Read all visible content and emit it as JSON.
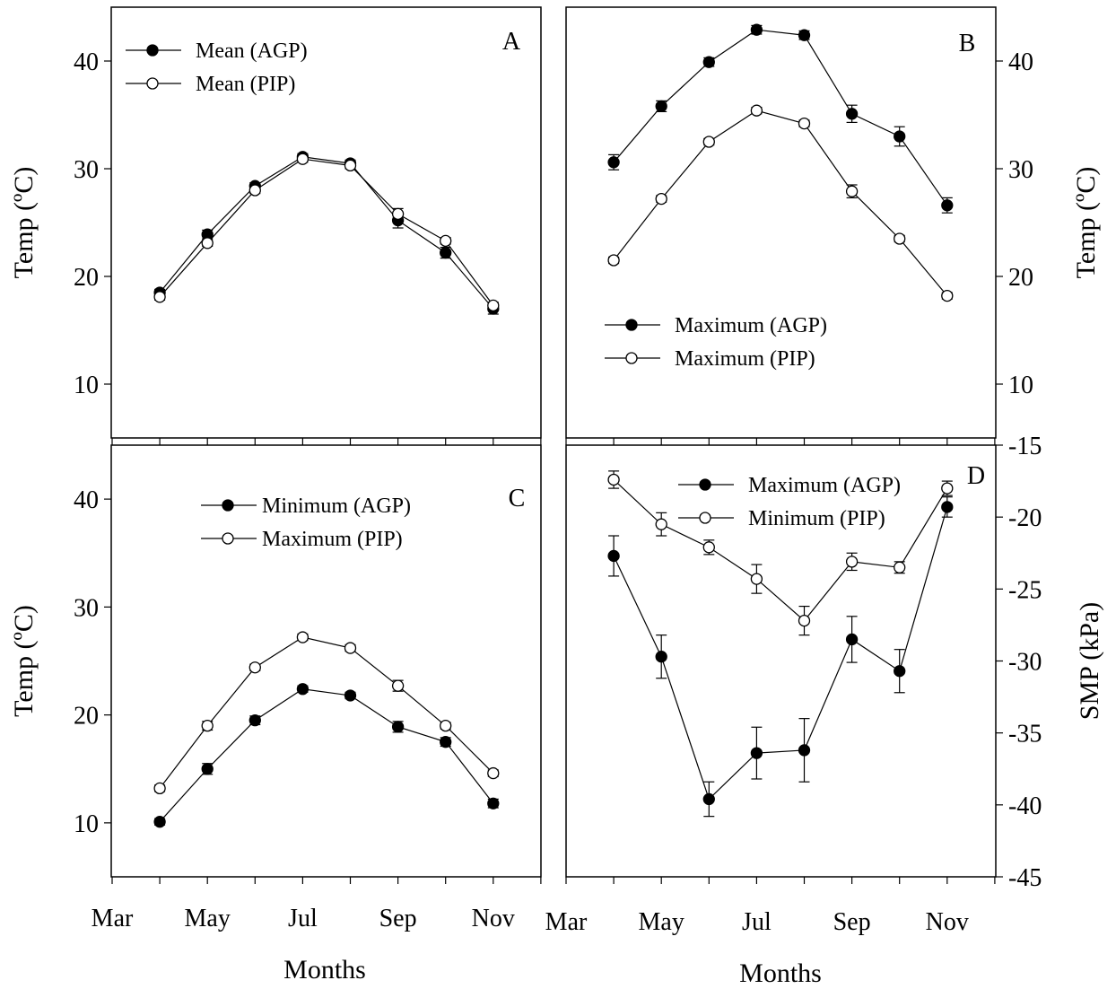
{
  "figure": {
    "xlabel": "Months",
    "month_ticks": [
      "Mar",
      "May",
      "Jul",
      "Sep",
      "Nov"
    ]
  },
  "chart_data": [
    {
      "type": "line",
      "panel": "A",
      "xlabel": "Months",
      "ylabel": "Temp (ºC)",
      "ylim": [
        5,
        45
      ],
      "yticks": [
        10,
        20,
        30,
        40
      ],
      "y_axis_side": "left",
      "x": [
        "Apr",
        "May",
        "Jun",
        "Jul",
        "Aug",
        "Sep",
        "Oct",
        "Nov"
      ],
      "legend_placement": "top-left",
      "series": [
        {
          "name": "Mean (AGP)",
          "marker": "filled",
          "values": [
            18.5,
            23.9,
            28.4,
            31.1,
            30.5,
            25.2,
            22.2,
            17.0
          ],
          "errors": [
            0.3,
            0.4,
            0.3,
            0.3,
            0.3,
            0.7,
            0.5,
            0.5
          ]
        },
        {
          "name": "Mean (PIP)",
          "marker": "open",
          "values": [
            18.1,
            23.1,
            28.0,
            30.9,
            30.3,
            25.8,
            23.3,
            17.3
          ],
          "errors": [
            0.3,
            0.3,
            0.3,
            0.3,
            0.3,
            0.5,
            0.3,
            0.3
          ]
        }
      ]
    },
    {
      "type": "line",
      "panel": "B",
      "xlabel": "Months",
      "ylabel": "Temp (ºC)",
      "ylim": [
        5,
        45
      ],
      "yticks": [
        10,
        20,
        30,
        40
      ],
      "y_axis_side": "right",
      "x": [
        "Apr",
        "May",
        "Jun",
        "Jul",
        "Aug",
        "Sep",
        "Oct",
        "Nov"
      ],
      "legend_placement": "lower-left",
      "series": [
        {
          "name": "Maximum (AGP)",
          "marker": "filled",
          "values": [
            30.6,
            35.8,
            39.9,
            42.9,
            42.4,
            35.1,
            33.0,
            26.6
          ],
          "errors": [
            0.7,
            0.5,
            0.4,
            0.4,
            0.4,
            0.8,
            0.9,
            0.7
          ]
        },
        {
          "name": "Maximum (PIP)",
          "marker": "open",
          "values": [
            21.5,
            27.2,
            32.5,
            35.4,
            34.2,
            27.9,
            23.5,
            18.2
          ],
          "errors": [
            0.3,
            0.3,
            0.3,
            0.3,
            0.3,
            0.6,
            0.3,
            0.3
          ]
        }
      ]
    },
    {
      "type": "line",
      "panel": "C",
      "xlabel": "Months",
      "ylabel": "Temp (ºC)",
      "ylim": [
        5,
        45
      ],
      "yticks": [
        10,
        20,
        30,
        40
      ],
      "y_axis_side": "left",
      "x": [
        "Apr",
        "May",
        "Jun",
        "Jul",
        "Aug",
        "Sep",
        "Oct",
        "Nov"
      ],
      "legend_placement": "top-center",
      "series": [
        {
          "name": "Minimum (AGP)",
          "marker": "filled",
          "values": [
            10.1,
            15.0,
            19.5,
            22.4,
            21.8,
            18.9,
            17.5,
            11.8
          ],
          "errors": [
            0.3,
            0.5,
            0.4,
            0.3,
            0.3,
            0.5,
            0.4,
            0.4
          ]
        },
        {
          "name": "Maximum (PIP)",
          "marker": "open",
          "values": [
            13.2,
            19.0,
            24.4,
            27.2,
            26.2,
            22.7,
            19.0,
            14.6
          ],
          "errors": [
            0.3,
            0.4,
            0.3,
            0.3,
            0.3,
            0.5,
            0.3,
            0.3
          ]
        }
      ]
    },
    {
      "type": "line",
      "panel": "D",
      "xlabel": "Months",
      "ylabel": "SMP (kPa)",
      "ylim": [
        -45,
        -15
      ],
      "yticks": [
        -15,
        -20,
        -25,
        -30,
        -35,
        -40,
        -45
      ],
      "y_axis_side": "right",
      "x": [
        "Apr",
        "May",
        "Jun",
        "Jul",
        "Aug",
        "Sep",
        "Oct",
        "Nov"
      ],
      "legend_placement": "top-center",
      "series": [
        {
          "name": "Maximum (AGP)",
          "marker": "filled",
          "values": [
            -22.7,
            -29.7,
            -39.6,
            -36.4,
            -36.2,
            -28.5,
            -30.7,
            -19.3
          ],
          "errors": [
            1.4,
            1.5,
            1.2,
            1.8,
            2.2,
            1.6,
            1.5,
            0.7
          ]
        },
        {
          "name": "Minimum (PIP)",
          "marker": "open",
          "values": [
            -17.4,
            -20.5,
            -22.1,
            -24.3,
            -27.2,
            -23.1,
            -23.5,
            -18.0
          ],
          "errors": [
            0.6,
            0.8,
            0.5,
            1.0,
            1.0,
            0.6,
            0.4,
            0.5
          ]
        }
      ]
    }
  ]
}
